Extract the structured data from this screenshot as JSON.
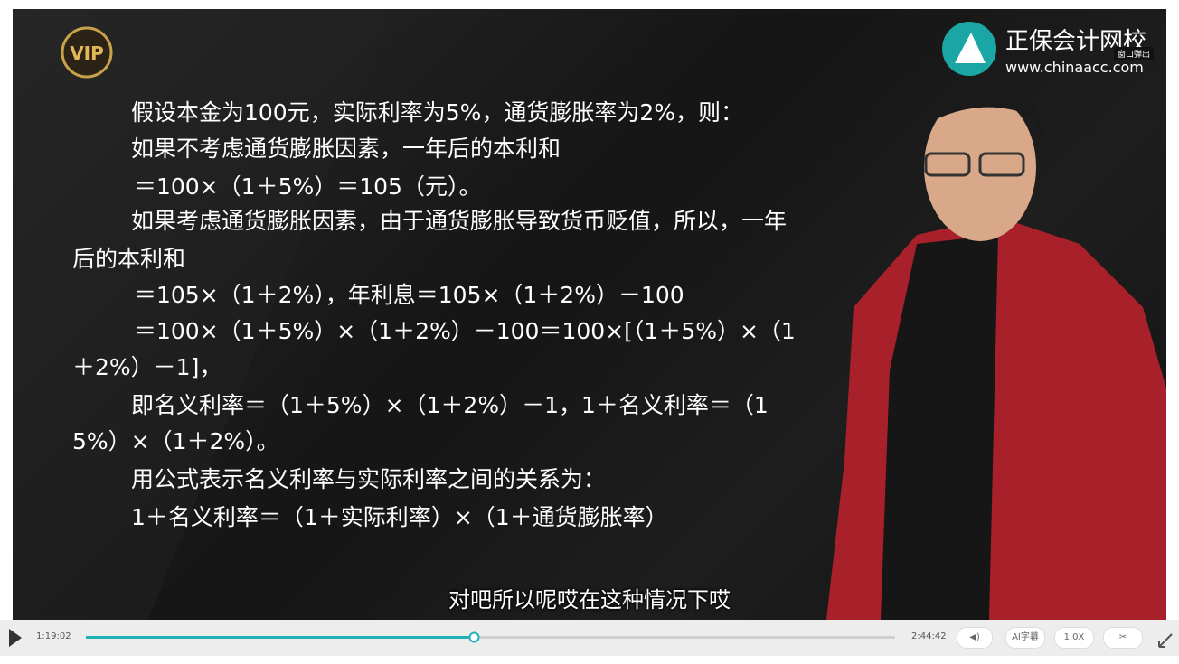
{
  "player": {
    "logo": {
      "badge": "VIP",
      "brand": "正保会计网校",
      "url": "www.chinaacc.com",
      "popout": "窗口弹出"
    },
    "slide": {
      "lines": [
        "假设本金为100元，实际利率为5%，通货膨胀率为2%，则：",
        "如果不考虑通货膨胀因素，一年后的本利和",
        "＝100×（1＋5%）＝105（元）。",
        "如果考虑通货膨胀因素，由于通货膨胀导致货币贬值，所以，一年",
        "后的本利和",
        "＝105×（1＋2%），年利息＝105×（1＋2%）－100",
        "＝100×（1＋5%）×（1＋2%）－100＝100×[（1＋5%）×（1",
        "＋2%）－1]，",
        "即名义利率＝（1＋5%）×（1＋2%）－1，1＋名义利率＝（1",
        "5%）×（1＋2%）。",
        "用公式表示名义利率与实际利率之间的关系为：",
        "1＋名义利率＝（1＋实际利率）×（1＋通货膨胀率）"
      ]
    },
    "subtitle": "对吧所以呢哎在这种情况下哎",
    "controls": {
      "current_time": "1:19:02",
      "duration": "2:44:42",
      "subtitle_button": "AI字幕",
      "speed": "1.0X"
    }
  }
}
